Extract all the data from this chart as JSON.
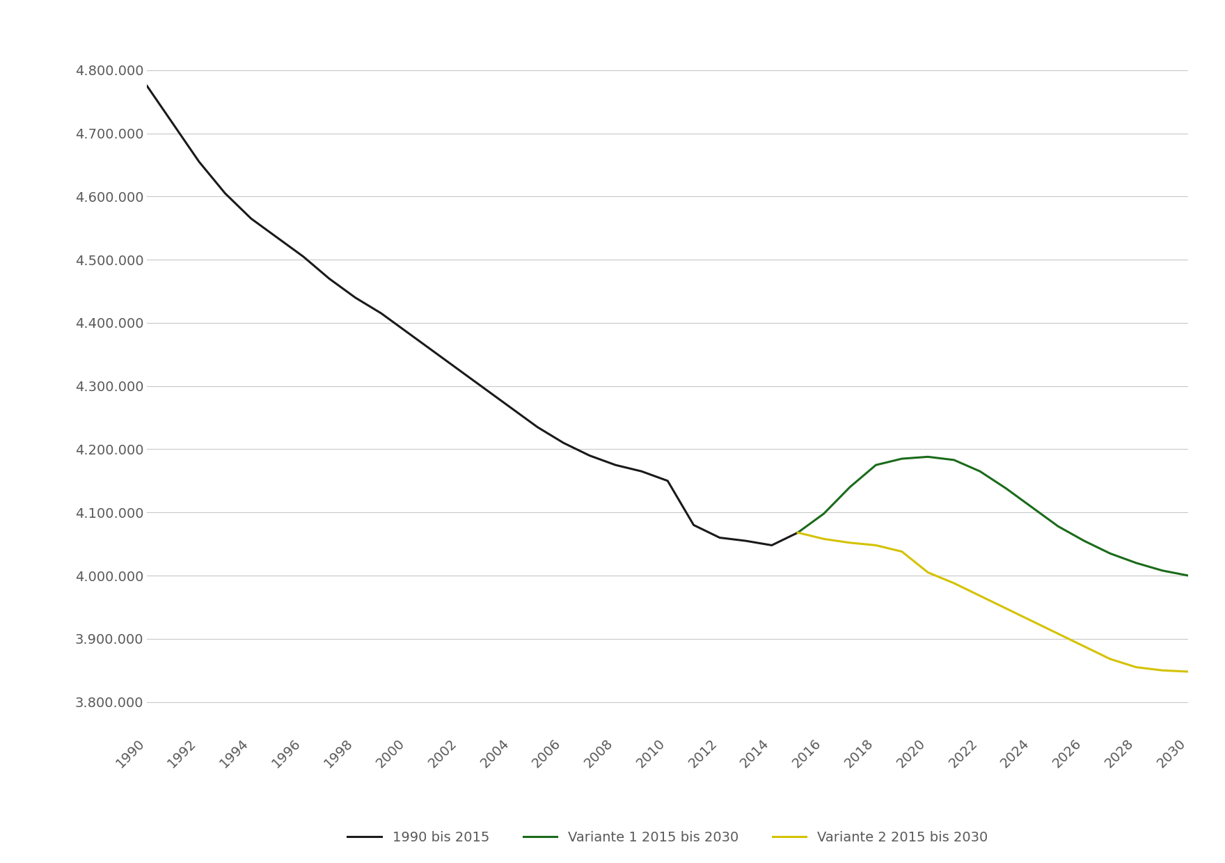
{
  "historical": {
    "years": [
      1990,
      1991,
      1992,
      1993,
      1994,
      1995,
      1996,
      1997,
      1998,
      1999,
      2000,
      2001,
      2002,
      2003,
      2004,
      2005,
      2006,
      2007,
      2008,
      2009,
      2010,
      2011,
      2012,
      2013,
      2014,
      2015
    ],
    "values": [
      4775000,
      4715000,
      4655000,
      4605000,
      4565000,
      4535000,
      4505000,
      4470000,
      4440000,
      4415000,
      4385000,
      4355000,
      4325000,
      4295000,
      4265000,
      4235000,
      4210000,
      4190000,
      4175000,
      4165000,
      4150000,
      4080000,
      4060000,
      4055000,
      4048000,
      4068000
    ],
    "color": "#1a1a1a",
    "label": "1990 bis 2015",
    "linewidth": 2.2
  },
  "variante1": {
    "years": [
      2015,
      2016,
      2017,
      2018,
      2019,
      2020,
      2021,
      2022,
      2023,
      2024,
      2025,
      2026,
      2027,
      2028,
      2029,
      2030
    ],
    "values": [
      4068000,
      4098000,
      4140000,
      4175000,
      4185000,
      4188000,
      4183000,
      4165000,
      4138000,
      4108000,
      4078000,
      4055000,
      4035000,
      4020000,
      4008000,
      4000000
    ],
    "color": "#1a6b1a",
    "label": "Variante 1 2015 bis 2030",
    "linewidth": 2.2
  },
  "variante2": {
    "years": [
      2015,
      2016,
      2017,
      2018,
      2019,
      2020,
      2021,
      2022,
      2023,
      2024,
      2025,
      2026,
      2027,
      2028,
      2029,
      2030
    ],
    "values": [
      4068000,
      4058000,
      4052000,
      4048000,
      4038000,
      4005000,
      3988000,
      3968000,
      3948000,
      3928000,
      3908000,
      3888000,
      3868000,
      3855000,
      3850000,
      3848000
    ],
    "color": "#d4c200",
    "label": "Variante 2 2015 bis 2030",
    "linewidth": 2.2
  },
  "ylim": [
    3750000,
    4870000
  ],
  "yticks": [
    3800000,
    3900000,
    4000000,
    4100000,
    4200000,
    4300000,
    4400000,
    4500000,
    4600000,
    4700000,
    4800000
  ],
  "xtick_years": [
    1990,
    1992,
    1994,
    1996,
    1998,
    2000,
    2002,
    2004,
    2006,
    2008,
    2010,
    2012,
    2014,
    2016,
    2018,
    2020,
    2022,
    2024,
    2026,
    2028,
    2030
  ],
  "background_color": "#ffffff",
  "grid_color": "#c8c8c8",
  "tick_color": "#595959",
  "legend_fontsize": 14,
  "tick_fontsize": 14
}
